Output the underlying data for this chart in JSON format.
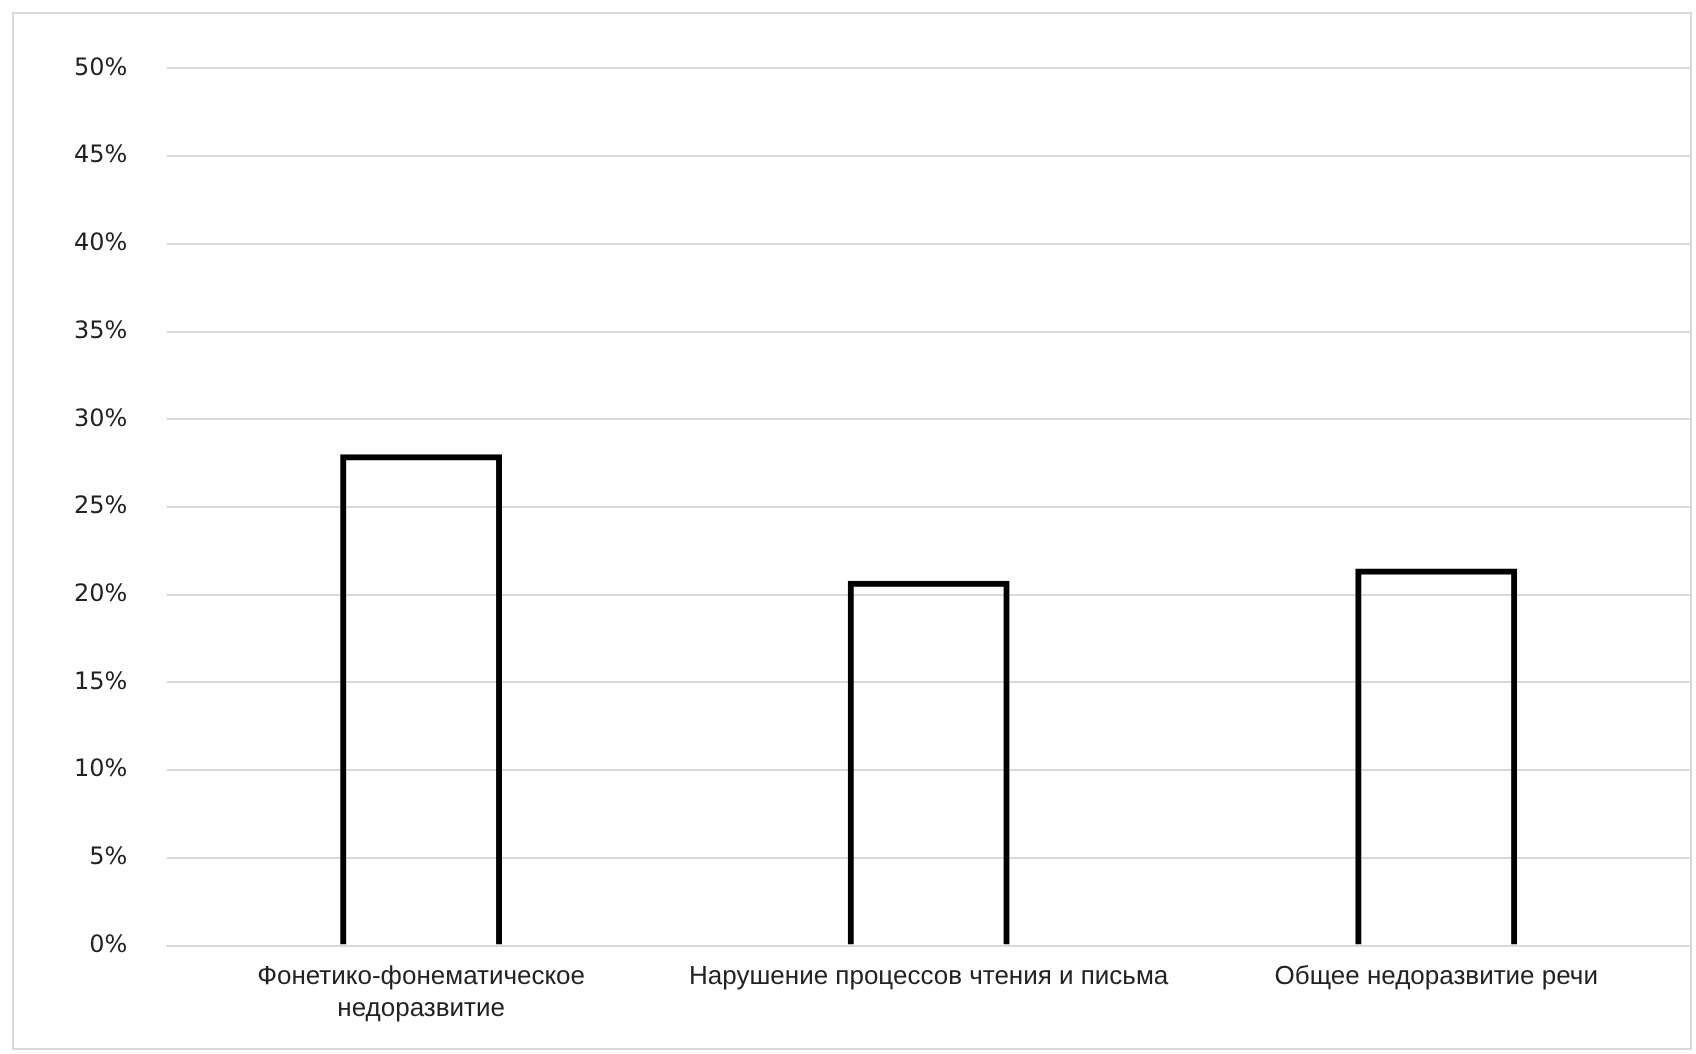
{
  "chart_data": {
    "type": "bar",
    "categories": [
      "Фонетико-фонематическое недоразвитие",
      "Нарушение процессов чтения и письма",
      "Общее недоразвитие речи"
    ],
    "values": [
      28,
      20.8,
      21.5
    ],
    "color": "#000000",
    "ylim": [
      0,
      50
    ],
    "yticks": [
      {
        "value": 0,
        "label": "0%"
      },
      {
        "value": 5,
        "label": "5%"
      },
      {
        "value": 10,
        "label": "10%"
      },
      {
        "value": 15,
        "label": "15%"
      },
      {
        "value": 20,
        "label": "20%"
      },
      {
        "value": 25,
        "label": "25%"
      },
      {
        "value": 30,
        "label": "30%"
      },
      {
        "value": 35,
        "label": "35%"
      },
      {
        "value": 40,
        "label": "40%"
      },
      {
        "value": 45,
        "label": "45%"
      },
      {
        "value": 50,
        "label": "50%"
      }
    ],
    "grid": "y"
  }
}
